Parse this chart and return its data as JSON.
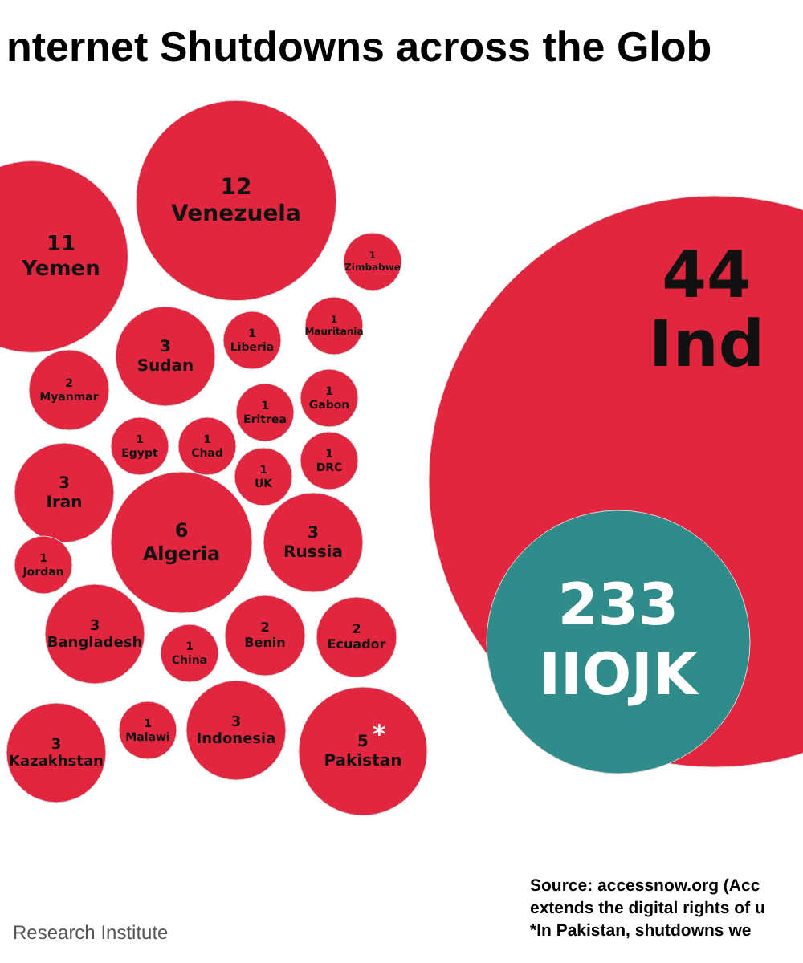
{
  "chart_data": {
    "type": "other",
    "title": "nternet Shutdowns across the Glob",
    "categories": [
      "Yemen",
      "Venezuela",
      "Zimbabwe",
      "Mauritania",
      "Liberia",
      "Sudan",
      "Myanmar",
      "Gabon",
      "Eritrea",
      "Chad",
      "Egypt",
      "DRC",
      "UK",
      "Iran",
      "Algeria",
      "Russia",
      "Jordan",
      "Bangladesh",
      "China",
      "Benin",
      "Ecuador",
      "Kazakhstan",
      "Malawi",
      "Indonesia",
      "Pakistan",
      "Ind",
      "IIOJK"
    ],
    "values": [
      11,
      12,
      1,
      1,
      1,
      3,
      2,
      1,
      1,
      1,
      1,
      1,
      1,
      3,
      6,
      3,
      1,
      3,
      1,
      2,
      2,
      3,
      1,
      3,
      5,
      null,
      233
    ],
    "value_labels": [
      "11",
      "12",
      "1",
      "1",
      "1",
      "3",
      "2",
      "1",
      "1",
      "1",
      "1",
      "1",
      "1",
      "3",
      "6",
      "3",
      "1",
      "3",
      "1",
      "2",
      "2",
      "3",
      "1",
      "3",
      "5*",
      "44",
      "233"
    ],
    "colors": [
      "#e3263f",
      "#e3263f",
      "#e3263f",
      "#e3263f",
      "#e3263f",
      "#e3263f",
      "#e3263f",
      "#e3263f",
      "#e3263f",
      "#e3263f",
      "#e3263f",
      "#e3263f",
      "#e3263f",
      "#e3263f",
      "#e3263f",
      "#e3263f",
      "#e3263f",
      "#e3263f",
      "#e3263f",
      "#e3263f",
      "#e3263f",
      "#e3263f",
      "#e3263f",
      "#e3263f",
      "#e3263f",
      "#e3263f",
      "#2f8c8a"
    ],
    "annotations": [
      "Source: accessnow.org (Acc",
      "extends the digital rights of u",
      "*In Pakistan, shutdowns we",
      "Research Institute"
    ]
  }
}
